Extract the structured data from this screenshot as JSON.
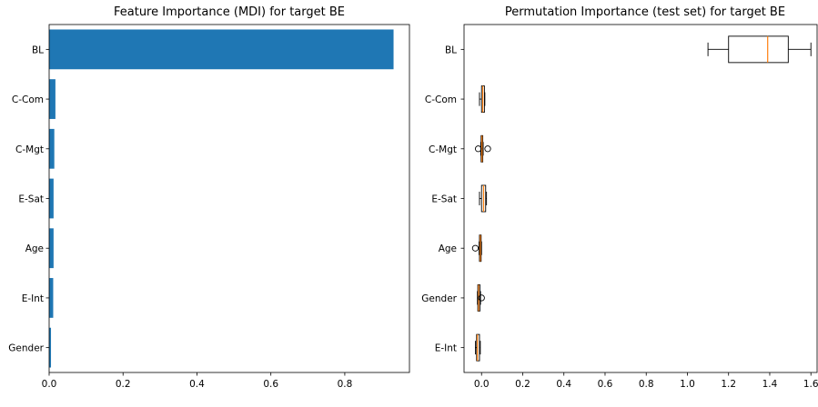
{
  "chart_data": [
    {
      "type": "bar",
      "orientation": "horizontal",
      "title": "Feature Importance (MDI) for target BE",
      "categories": [
        "Gender",
        "E-Int",
        "Age",
        "E-Sat",
        "C-Mgt",
        "C-Com",
        "BL"
      ],
      "values": [
        0.005,
        0.011,
        0.012,
        0.012,
        0.014,
        0.017,
        0.932
      ],
      "xlim": [
        0.0,
        0.975
      ],
      "xticks": [
        "0.0",
        "0.2",
        "0.4",
        "0.6",
        "0.8"
      ],
      "xtick_values": [
        0.0,
        0.2,
        0.4,
        0.6,
        0.8
      ],
      "xlabel": "",
      "ylabel": "",
      "bar_color": "#1f77b4",
      "grid": false
    },
    {
      "type": "box",
      "orientation": "horizontal",
      "title": "Permutation Importance (test set) for target BE",
      "categories": [
        "E-Int",
        "Gender",
        "Age",
        "E-Sat",
        "C-Mgt",
        "C-Com",
        "BL"
      ],
      "boxes": [
        {
          "label": "E-Int",
          "whisker_low": -0.03,
          "q1": -0.024,
          "median": -0.02,
          "q3": -0.01,
          "whisker_high": -0.006,
          "fliers": []
        },
        {
          "label": "Gender",
          "whisker_low": -0.02,
          "q1": -0.018,
          "median": -0.014,
          "q3": -0.008,
          "whisker_high": -0.005,
          "fliers": [
            0.0
          ]
        },
        {
          "label": "Age",
          "whisker_low": -0.012,
          "q1": -0.01,
          "median": -0.006,
          "q3": -0.002,
          "whisker_high": 0.0,
          "fliers": [
            -0.03
          ]
        },
        {
          "label": "E-Sat",
          "whisker_low": -0.01,
          "q1": 0.0,
          "median": 0.01,
          "q3": 0.02,
          "whisker_high": 0.024,
          "fliers": []
        },
        {
          "label": "C-Mgt",
          "whisker_low": -0.004,
          "q1": -0.002,
          "median": 0.002,
          "q3": 0.006,
          "whisker_high": 0.008,
          "fliers": [
            -0.016,
            0.03
          ]
        },
        {
          "label": "C-Com",
          "whisker_low": -0.01,
          "q1": 0.0,
          "median": 0.006,
          "q3": 0.014,
          "whisker_high": 0.016,
          "fliers": []
        },
        {
          "label": "BL",
          "whisker_low": 1.1,
          "q1": 1.2,
          "median": 1.39,
          "q3": 1.49,
          "whisker_high": 1.6,
          "fliers": []
        }
      ],
      "xlim": [
        -0.085,
        1.63
      ],
      "xticks": [
        "0.0",
        "0.2",
        "0.4",
        "0.6",
        "0.8",
        "1.0",
        "1.2",
        "1.4",
        "1.6"
      ],
      "xtick_values": [
        0.0,
        0.2,
        0.4,
        0.6,
        0.8,
        1.0,
        1.2,
        1.4,
        1.6
      ],
      "xlabel": "",
      "ylabel": "",
      "box_color": "#000000",
      "median_color": "#ff7f0e",
      "grid": false
    }
  ]
}
